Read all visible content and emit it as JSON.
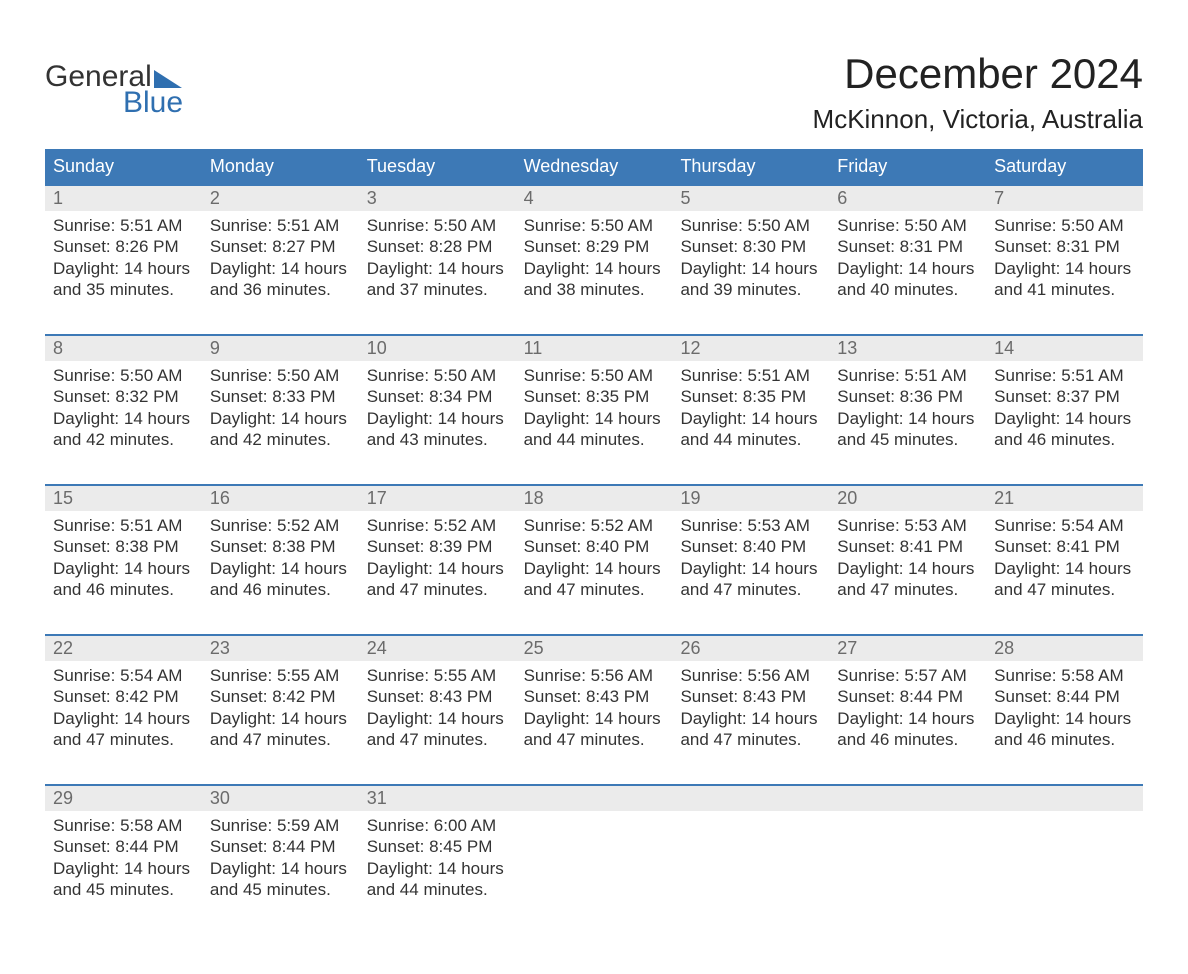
{
  "logo": {
    "word1": "General",
    "word2": "Blue"
  },
  "title": "December 2024",
  "location": "McKinnon, Victoria, Australia",
  "colors": {
    "brand_blue": "#3d79b6",
    "logo_blue": "#2f6fb0",
    "row_grey": "#ebebeb",
    "text": "#333333",
    "date_text": "#6b6b6b",
    "background": "#ffffff"
  },
  "typography": {
    "title_fontsize": 42,
    "location_fontsize": 26,
    "header_fontsize": 18,
    "body_fontsize": 17
  },
  "day_names": [
    "Sunday",
    "Monday",
    "Tuesday",
    "Wednesday",
    "Thursday",
    "Friday",
    "Saturday"
  ],
  "weeks": [
    [
      {
        "date": "1",
        "sunrise": "Sunrise: 5:51 AM",
        "sunset": "Sunset: 8:26 PM",
        "dayl1": "Daylight: 14 hours",
        "dayl2": "and 35 minutes."
      },
      {
        "date": "2",
        "sunrise": "Sunrise: 5:51 AM",
        "sunset": "Sunset: 8:27 PM",
        "dayl1": "Daylight: 14 hours",
        "dayl2": "and 36 minutes."
      },
      {
        "date": "3",
        "sunrise": "Sunrise: 5:50 AM",
        "sunset": "Sunset: 8:28 PM",
        "dayl1": "Daylight: 14 hours",
        "dayl2": "and 37 minutes."
      },
      {
        "date": "4",
        "sunrise": "Sunrise: 5:50 AM",
        "sunset": "Sunset: 8:29 PM",
        "dayl1": "Daylight: 14 hours",
        "dayl2": "and 38 minutes."
      },
      {
        "date": "5",
        "sunrise": "Sunrise: 5:50 AM",
        "sunset": "Sunset: 8:30 PM",
        "dayl1": "Daylight: 14 hours",
        "dayl2": "and 39 minutes."
      },
      {
        "date": "6",
        "sunrise": "Sunrise: 5:50 AM",
        "sunset": "Sunset: 8:31 PM",
        "dayl1": "Daylight: 14 hours",
        "dayl2": "and 40 minutes."
      },
      {
        "date": "7",
        "sunrise": "Sunrise: 5:50 AM",
        "sunset": "Sunset: 8:31 PM",
        "dayl1": "Daylight: 14 hours",
        "dayl2": "and 41 minutes."
      }
    ],
    [
      {
        "date": "8",
        "sunrise": "Sunrise: 5:50 AM",
        "sunset": "Sunset: 8:32 PM",
        "dayl1": "Daylight: 14 hours",
        "dayl2": "and 42 minutes."
      },
      {
        "date": "9",
        "sunrise": "Sunrise: 5:50 AM",
        "sunset": "Sunset: 8:33 PM",
        "dayl1": "Daylight: 14 hours",
        "dayl2": "and 42 minutes."
      },
      {
        "date": "10",
        "sunrise": "Sunrise: 5:50 AM",
        "sunset": "Sunset: 8:34 PM",
        "dayl1": "Daylight: 14 hours",
        "dayl2": "and 43 minutes."
      },
      {
        "date": "11",
        "sunrise": "Sunrise: 5:50 AM",
        "sunset": "Sunset: 8:35 PM",
        "dayl1": "Daylight: 14 hours",
        "dayl2": "and 44 minutes."
      },
      {
        "date": "12",
        "sunrise": "Sunrise: 5:51 AM",
        "sunset": "Sunset: 8:35 PM",
        "dayl1": "Daylight: 14 hours",
        "dayl2": "and 44 minutes."
      },
      {
        "date": "13",
        "sunrise": "Sunrise: 5:51 AM",
        "sunset": "Sunset: 8:36 PM",
        "dayl1": "Daylight: 14 hours",
        "dayl2": "and 45 minutes."
      },
      {
        "date": "14",
        "sunrise": "Sunrise: 5:51 AM",
        "sunset": "Sunset: 8:37 PM",
        "dayl1": "Daylight: 14 hours",
        "dayl2": "and 46 minutes."
      }
    ],
    [
      {
        "date": "15",
        "sunrise": "Sunrise: 5:51 AM",
        "sunset": "Sunset: 8:38 PM",
        "dayl1": "Daylight: 14 hours",
        "dayl2": "and 46 minutes."
      },
      {
        "date": "16",
        "sunrise": "Sunrise: 5:52 AM",
        "sunset": "Sunset: 8:38 PM",
        "dayl1": "Daylight: 14 hours",
        "dayl2": "and 46 minutes."
      },
      {
        "date": "17",
        "sunrise": "Sunrise: 5:52 AM",
        "sunset": "Sunset: 8:39 PM",
        "dayl1": "Daylight: 14 hours",
        "dayl2": "and 47 minutes."
      },
      {
        "date": "18",
        "sunrise": "Sunrise: 5:52 AM",
        "sunset": "Sunset: 8:40 PM",
        "dayl1": "Daylight: 14 hours",
        "dayl2": "and 47 minutes."
      },
      {
        "date": "19",
        "sunrise": "Sunrise: 5:53 AM",
        "sunset": "Sunset: 8:40 PM",
        "dayl1": "Daylight: 14 hours",
        "dayl2": "and 47 minutes."
      },
      {
        "date": "20",
        "sunrise": "Sunrise: 5:53 AM",
        "sunset": "Sunset: 8:41 PM",
        "dayl1": "Daylight: 14 hours",
        "dayl2": "and 47 minutes."
      },
      {
        "date": "21",
        "sunrise": "Sunrise: 5:54 AM",
        "sunset": "Sunset: 8:41 PM",
        "dayl1": "Daylight: 14 hours",
        "dayl2": "and 47 minutes."
      }
    ],
    [
      {
        "date": "22",
        "sunrise": "Sunrise: 5:54 AM",
        "sunset": "Sunset: 8:42 PM",
        "dayl1": "Daylight: 14 hours",
        "dayl2": "and 47 minutes."
      },
      {
        "date": "23",
        "sunrise": "Sunrise: 5:55 AM",
        "sunset": "Sunset: 8:42 PM",
        "dayl1": "Daylight: 14 hours",
        "dayl2": "and 47 minutes."
      },
      {
        "date": "24",
        "sunrise": "Sunrise: 5:55 AM",
        "sunset": "Sunset: 8:43 PM",
        "dayl1": "Daylight: 14 hours",
        "dayl2": "and 47 minutes."
      },
      {
        "date": "25",
        "sunrise": "Sunrise: 5:56 AM",
        "sunset": "Sunset: 8:43 PM",
        "dayl1": "Daylight: 14 hours",
        "dayl2": "and 47 minutes."
      },
      {
        "date": "26",
        "sunrise": "Sunrise: 5:56 AM",
        "sunset": "Sunset: 8:43 PM",
        "dayl1": "Daylight: 14 hours",
        "dayl2": "and 47 minutes."
      },
      {
        "date": "27",
        "sunrise": "Sunrise: 5:57 AM",
        "sunset": "Sunset: 8:44 PM",
        "dayl1": "Daylight: 14 hours",
        "dayl2": "and 46 minutes."
      },
      {
        "date": "28",
        "sunrise": "Sunrise: 5:58 AM",
        "sunset": "Sunset: 8:44 PM",
        "dayl1": "Daylight: 14 hours",
        "dayl2": "and 46 minutes."
      }
    ],
    [
      {
        "date": "29",
        "sunrise": "Sunrise: 5:58 AM",
        "sunset": "Sunset: 8:44 PM",
        "dayl1": "Daylight: 14 hours",
        "dayl2": "and 45 minutes."
      },
      {
        "date": "30",
        "sunrise": "Sunrise: 5:59 AM",
        "sunset": "Sunset: 8:44 PM",
        "dayl1": "Daylight: 14 hours",
        "dayl2": "and 45 minutes."
      },
      {
        "date": "31",
        "sunrise": "Sunrise: 6:00 AM",
        "sunset": "Sunset: 8:45 PM",
        "dayl1": "Daylight: 14 hours",
        "dayl2": "and 44 minutes."
      },
      null,
      null,
      null,
      null
    ]
  ]
}
